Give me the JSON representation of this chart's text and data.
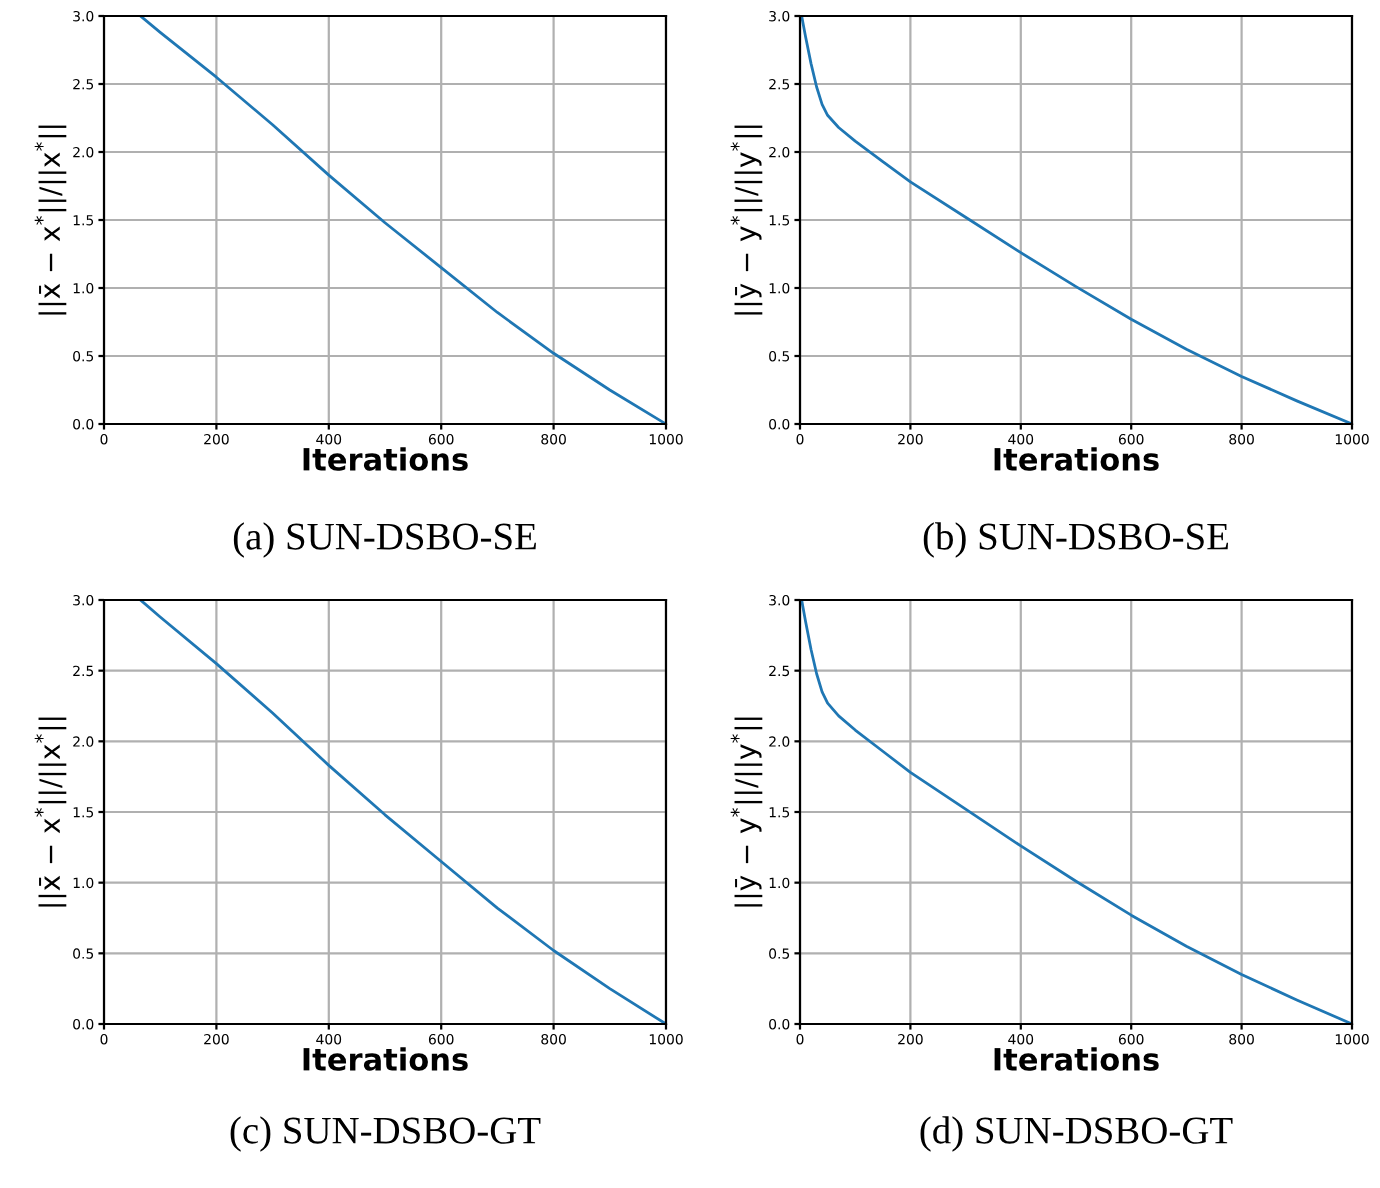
{
  "chart_data": [
    {
      "type": "line",
      "xlabel": "Iterations",
      "ylabel": "||x̄ − x$^{*}$||/||x$^{*}$||",
      "annotations": [
        "(a) SUN-DSBO-SE"
      ],
      "grid": true,
      "series": [
        {
          "color": "#1f77b4",
          "x": [
            65,
            100,
            200,
            300,
            400,
            500,
            600,
            700,
            800,
            900,
            1000
          ],
          "values": [
            3.0,
            2.88,
            2.55,
            2.2,
            1.83,
            1.48,
            1.15,
            0.82,
            0.52,
            0.25,
            0.0
          ]
        }
      ],
      "xlim": [
        0,
        1000
      ],
      "ylim": [
        0,
        3
      ],
      "xticks": [
        0,
        200,
        400,
        600,
        800,
        1000
      ],
      "yticks": [
        {
          "value": 0,
          "label": "0.0"
        },
        {
          "value": 0.5,
          "label": "0.5"
        },
        {
          "value": 1,
          "label": "1.0"
        },
        {
          "value": 1.5,
          "label": "1.5"
        },
        {
          "value": 2,
          "label": "2.0"
        },
        {
          "value": 2.5,
          "label": "2.5"
        },
        {
          "value": 3,
          "label": "3.0"
        }
      ]
    },
    {
      "type": "line",
      "xlabel": "Iterations",
      "ylabel": "||ȳ − y$^{*}$||/||y$^{*}$||",
      "annotations": [
        "(b) SUN-DSBO-SE"
      ],
      "grid": true,
      "series": [
        {
          "color": "#1f77b4",
          "x": [
            3,
            10,
            20,
            30,
            40,
            50,
            70,
            100,
            150,
            200,
            300,
            400,
            500,
            600,
            700,
            800,
            900,
            1000
          ],
          "values": [
            3.0,
            2.85,
            2.65,
            2.48,
            2.35,
            2.27,
            2.18,
            2.08,
            1.93,
            1.78,
            1.52,
            1.26,
            1.01,
            0.77,
            0.55,
            0.35,
            0.17,
            0.0
          ]
        }
      ],
      "xlim": [
        0,
        1000
      ],
      "ylim": [
        0,
        3
      ],
      "xticks": [
        0,
        200,
        400,
        600,
        800,
        1000
      ],
      "yticks": [
        {
          "value": 0,
          "label": "0.0"
        },
        {
          "value": 0.5,
          "label": "0.5"
        },
        {
          "value": 1,
          "label": "1.0"
        },
        {
          "value": 1.5,
          "label": "1.5"
        },
        {
          "value": 2,
          "label": "2.0"
        },
        {
          "value": 2.5,
          "label": "2.5"
        },
        {
          "value": 3,
          "label": "3.0"
        }
      ]
    },
    {
      "type": "line",
      "xlabel": "Iterations",
      "ylabel": "||x̄ − x$^{*}$||/||x$^{*}$||",
      "annotations": [
        "(c) SUN-DSBO-GT"
      ],
      "grid": true,
      "series": [
        {
          "color": "#1f77b4",
          "x": [
            65,
            100,
            200,
            300,
            400,
            500,
            600,
            700,
            800,
            900,
            1000
          ],
          "values": [
            3.0,
            2.88,
            2.55,
            2.2,
            1.83,
            1.48,
            1.15,
            0.82,
            0.52,
            0.25,
            0.0
          ]
        }
      ],
      "xlim": [
        0,
        1000
      ],
      "ylim": [
        0,
        3
      ],
      "xticks": [
        0,
        200,
        400,
        600,
        800,
        1000
      ],
      "yticks": [
        {
          "value": 0,
          "label": "0.0"
        },
        {
          "value": 0.5,
          "label": "0.5"
        },
        {
          "value": 1,
          "label": "1.0"
        },
        {
          "value": 1.5,
          "label": "1.5"
        },
        {
          "value": 2,
          "label": "2.0"
        },
        {
          "value": 2.5,
          "label": "2.5"
        },
        {
          "value": 3,
          "label": "3.0"
        }
      ]
    },
    {
      "type": "line",
      "xlabel": "Iterations",
      "ylabel": "||ȳ − y$^{*}$||/||y$^{*}$||",
      "annotations": [
        "(d) SUN-DSBO-GT"
      ],
      "grid": true,
      "series": [
        {
          "color": "#1f77b4",
          "x": [
            3,
            10,
            20,
            30,
            40,
            50,
            70,
            100,
            150,
            200,
            300,
            400,
            500,
            600,
            700,
            800,
            900,
            1000
          ],
          "values": [
            3.0,
            2.85,
            2.65,
            2.48,
            2.35,
            2.27,
            2.18,
            2.08,
            1.93,
            1.78,
            1.52,
            1.26,
            1.01,
            0.77,
            0.55,
            0.35,
            0.17,
            0.0
          ]
        }
      ],
      "xlim": [
        0,
        1000
      ],
      "ylim": [
        0,
        3
      ],
      "xticks": [
        0,
        200,
        400,
        600,
        800,
        1000
      ],
      "yticks": [
        {
          "value": 0,
          "label": "0.0"
        },
        {
          "value": 0.5,
          "label": "0.5"
        },
        {
          "value": 1,
          "label": "1.0"
        },
        {
          "value": 1.5,
          "label": "1.5"
        },
        {
          "value": 2,
          "label": "2.0"
        },
        {
          "value": 2.5,
          "label": "2.5"
        },
        {
          "value": 3,
          "label": "3.0"
        }
      ]
    }
  ]
}
